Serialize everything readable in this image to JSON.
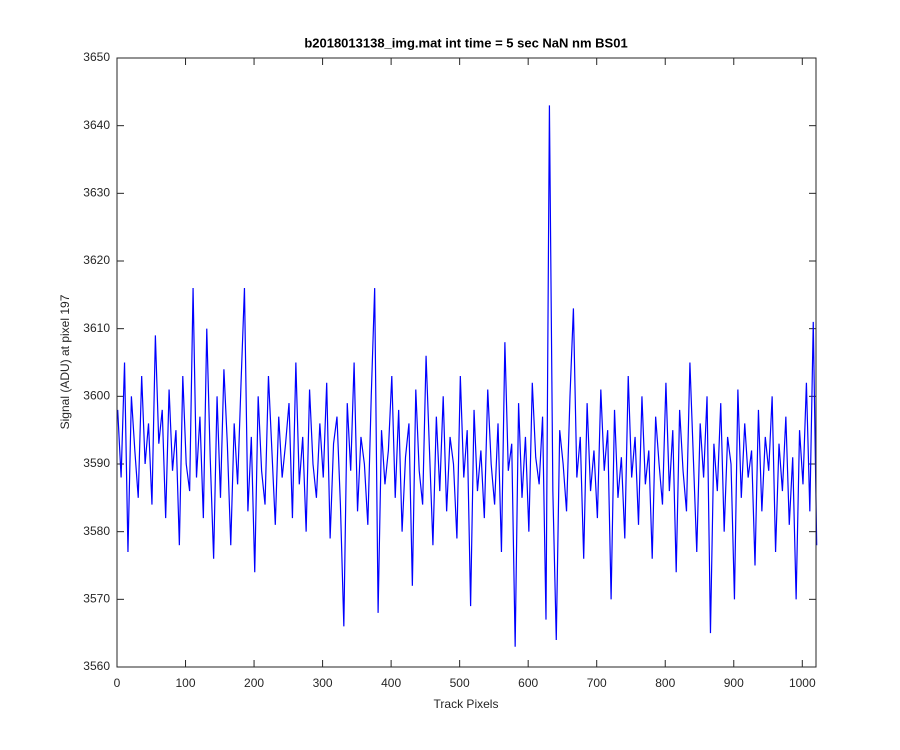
{
  "chart_data": {
    "type": "line",
    "title": "b2018013138_img.mat int time = 5 sec  NaN nm BS01",
    "x_label": "Track Pixels",
    "y_label": "Signal (ADU) at pixel 197",
    "xlim": [
      0,
      1020
    ],
    "ylim": [
      3560,
      3650
    ],
    "xticks": [
      0,
      100,
      200,
      300,
      400,
      500,
      600,
      700,
      800,
      900,
      1000
    ],
    "yticks": [
      3560,
      3570,
      3580,
      3590,
      3600,
      3610,
      3620,
      3630,
      3640,
      3650
    ],
    "grid": false,
    "x": [
      1,
      6,
      11,
      16,
      21,
      26,
      31,
      36,
      41,
      46,
      51,
      56,
      61,
      66,
      71,
      76,
      81,
      86,
      91,
      96,
      101,
      106,
      111,
      116,
      121,
      126,
      131,
      136,
      141,
      146,
      151,
      156,
      161,
      166,
      171,
      176,
      181,
      186,
      191,
      196,
      201,
      206,
      211,
      216,
      221,
      226,
      231,
      236,
      241,
      246,
      251,
      256,
      261,
      266,
      271,
      276,
      281,
      286,
      291,
      296,
      301,
      306,
      311,
      316,
      321,
      326,
      331,
      336,
      341,
      346,
      351,
      356,
      361,
      366,
      371,
      376,
      381,
      386,
      391,
      396,
      401,
      406,
      411,
      416,
      421,
      426,
      431,
      436,
      441,
      446,
      451,
      456,
      461,
      466,
      471,
      476,
      481,
      486,
      491,
      496,
      501,
      506,
      511,
      516,
      521,
      526,
      531,
      536,
      541,
      546,
      551,
      556,
      561,
      566,
      571,
      576,
      581,
      586,
      591,
      596,
      601,
      606,
      611,
      616,
      621,
      626,
      631,
      636,
      641,
      646,
      651,
      656,
      661,
      666,
      671,
      676,
      681,
      686,
      691,
      696,
      701,
      706,
      711,
      716,
      721,
      726,
      731,
      736,
      741,
      746,
      751,
      756,
      761,
      766,
      771,
      776,
      781,
      786,
      791,
      796,
      801,
      806,
      811,
      816,
      821,
      826,
      831,
      836,
      841,
      846,
      851,
      856,
      861,
      866,
      871,
      876,
      881,
      886,
      891,
      896,
      901,
      906,
      911,
      916,
      921,
      926,
      931,
      936,
      941,
      946,
      951,
      956,
      961,
      966,
      971,
      976,
      981,
      986,
      991,
      996,
      1001,
      1006,
      1011,
      1016,
      1021
    ],
    "series": [
      {
        "name": "signal",
        "color": "#0000ff",
        "values": [
          3598,
          3588,
          3605,
          3577,
          3600,
          3592,
          3585,
          3603,
          3590,
          3596,
          3584,
          3609,
          3593,
          3598,
          3582,
          3601,
          3589,
          3595,
          3578,
          3603,
          3590,
          3586,
          3616,
          3588,
          3597,
          3582,
          3610,
          3591,
          3576,
          3600,
          3585,
          3604,
          3593,
          3578,
          3596,
          3587,
          3602,
          3616,
          3583,
          3594,
          3574,
          3600,
          3589,
          3584,
          3603,
          3592,
          3581,
          3597,
          3588,
          3593,
          3599,
          3582,
          3605,
          3587,
          3594,
          3580,
          3601,
          3590,
          3585,
          3596,
          3588,
          3602,
          3579,
          3593,
          3597,
          3584,
          3566,
          3599,
          3589,
          3605,
          3583,
          3594,
          3590,
          3581,
          3600,
          3616,
          3568,
          3595,
          3587,
          3592,
          3603,
          3585,
          3598,
          3580,
          3591,
          3596,
          3572,
          3601,
          3589,
          3584,
          3606,
          3592,
          3578,
          3597,
          3586,
          3600,
          3583,
          3594,
          3590,
          3579,
          3603,
          3588,
          3595,
          3569,
          3598,
          3586,
          3592,
          3582,
          3601,
          3590,
          3584,
          3596,
          3577,
          3608,
          3589,
          3593,
          3563,
          3599,
          3585,
          3594,
          3580,
          3602,
          3591,
          3587,
          3597,
          3567,
          3643,
          3586,
          3564,
          3595,
          3590,
          3583,
          3600,
          3613,
          3588,
          3594,
          3576,
          3599,
          3586,
          3592,
          3582,
          3601,
          3589,
          3595,
          3570,
          3598,
          3585,
          3591,
          3579,
          3603,
          3588,
          3594,
          3581,
          3600,
          3587,
          3592,
          3576,
          3597,
          3590,
          3584,
          3602,
          3586,
          3595,
          3574,
          3598,
          3589,
          3583,
          3605,
          3591,
          3577,
          3596,
          3588,
          3600,
          3565,
          3593,
          3586,
          3599,
          3580,
          3594,
          3590,
          3570,
          3601,
          3585,
          3596,
          3588,
          3592,
          3575,
          3598,
          3583,
          3594,
          3589,
          3600,
          3577,
          3593,
          3586,
          3597,
          3581,
          3591,
          3570,
          3595,
          3587,
          3602,
          3583,
          3611,
          3578
        ]
      }
    ]
  }
}
